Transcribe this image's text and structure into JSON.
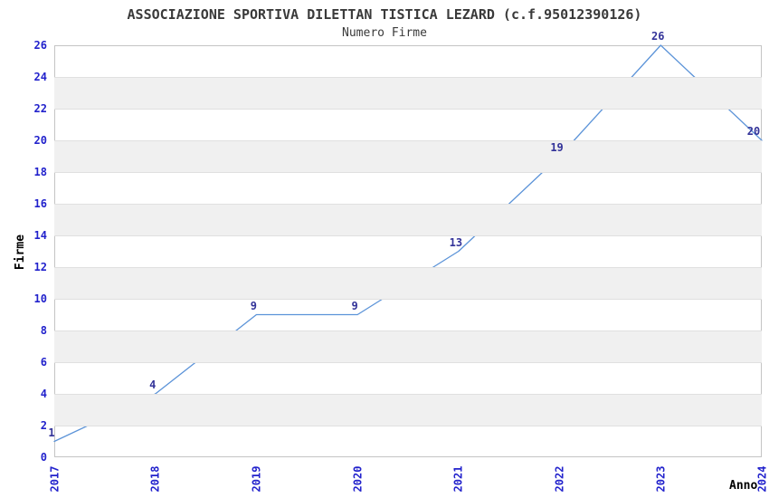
{
  "chart_data": {
    "type": "line",
    "title": "ASSOCIAZIONE SPORTIVA DILETTAN TISTICA LEZARD (c.f.95012390126)",
    "subtitle": "Numero Firme",
    "xlabel": "Anno",
    "ylabel": "Firme",
    "x": [
      "2017",
      "2018",
      "2019",
      "2020",
      "2021",
      "2022",
      "2023",
      "2024"
    ],
    "series": [
      {
        "name": "Numero Firme",
        "values": [
          1,
          4,
          9,
          9,
          13,
          19,
          26,
          20
        ]
      }
    ],
    "point_labels": [
      "1",
      "4",
      "9",
      "9",
      "13",
      "19",
      "26",
      "20"
    ],
    "ylim": [
      0,
      26
    ],
    "ytick_step": 2,
    "grid": true,
    "legend": "none",
    "background_bands": "alternating horizontal gray bands every 2 units",
    "colors": {
      "line": "#5B93D8",
      "tick_label": "#2222CC",
      "point_label": "#333399",
      "band": "#F0F0F0",
      "gridline": "#E0E0E0",
      "plot_border": "#C4C4C4",
      "text": "#3A3A3A",
      "axis_title": "#000000",
      "background": "#FFFFFF"
    }
  }
}
